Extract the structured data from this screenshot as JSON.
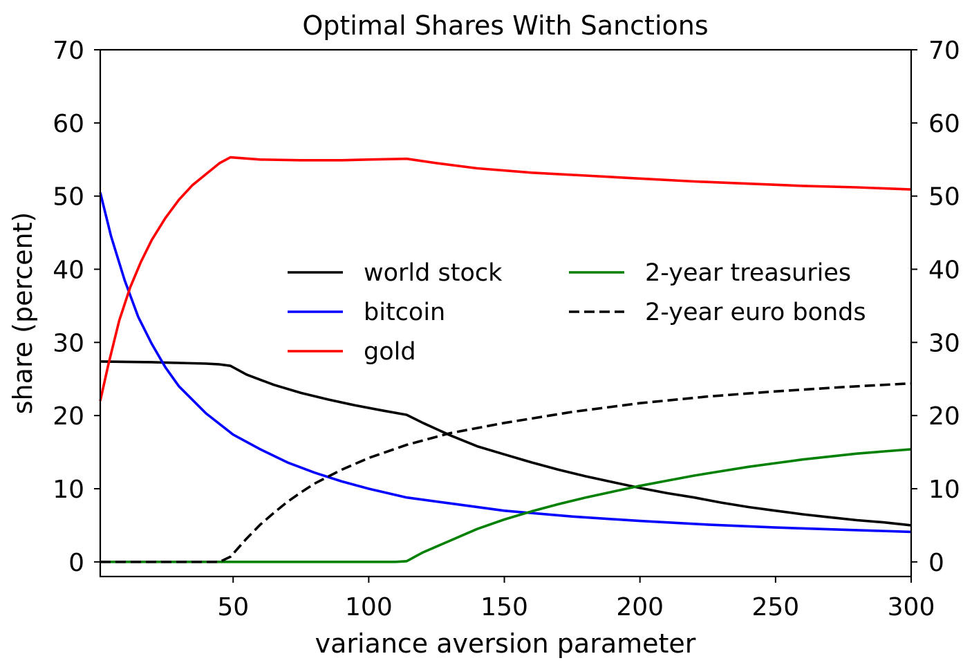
{
  "chart_data": {
    "type": "line",
    "title": "Optimal Shares With Sanctions",
    "xlabel": "variance aversion parameter",
    "ylabel": "share (percent)",
    "xlim": [
      1,
      300
    ],
    "ylim": [
      -2,
      70
    ],
    "xticks": [
      50,
      100,
      150,
      200,
      250,
      300
    ],
    "xtick_labels": [
      "50",
      "100",
      "150",
      "200",
      "250",
      "300"
    ],
    "yticks": [
      0,
      10,
      20,
      30,
      40,
      50,
      60,
      70
    ],
    "ytick_labels": [
      "0",
      "10",
      "20",
      "30",
      "40",
      "50",
      "60",
      "70"
    ],
    "right_axis_mirrored": true,
    "grid": false,
    "legend_position": "center",
    "legend_columns": 2,
    "series": [
      {
        "name": "world stock",
        "color": "#000000",
        "dash": "solid",
        "x": [
          1,
          10,
          20,
          30,
          40,
          45,
          49,
          55,
          65,
          75,
          85,
          95,
          105,
          114,
          120,
          130,
          140,
          150,
          160,
          170,
          180,
          190,
          200,
          210,
          220,
          230,
          240,
          250,
          260,
          270,
          280,
          290,
          300
        ],
        "y": [
          27.4,
          27.35,
          27.3,
          27.2,
          27.1,
          27.0,
          26.8,
          25.6,
          24.2,
          23.1,
          22.2,
          21.4,
          20.7,
          20.1,
          19.0,
          17.3,
          15.8,
          14.7,
          13.6,
          12.6,
          11.7,
          10.9,
          10.1,
          9.4,
          8.8,
          8.1,
          7.5,
          7.0,
          6.5,
          6.1,
          5.7,
          5.4,
          5.0
        ]
      },
      {
        "name": "bitcoin",
        "color": "#0000ff",
        "dash": "solid",
        "x": [
          1,
          5,
          10,
          15,
          20,
          25,
          30,
          40,
          50,
          60,
          70,
          80,
          90,
          100,
          114,
          130,
          150,
          175,
          200,
          225,
          250,
          275,
          300
        ],
        "y": [
          50.5,
          44.5,
          38.5,
          33.5,
          29.8,
          26.6,
          24.0,
          20.3,
          17.4,
          15.4,
          13.6,
          12.2,
          11.0,
          10.0,
          8.8,
          8.0,
          7.0,
          6.2,
          5.6,
          5.1,
          4.7,
          4.4,
          4.1
        ]
      },
      {
        "name": "gold",
        "color": "#ff0000",
        "dash": "solid",
        "x": [
          1,
          4,
          8,
          12,
          16,
          20,
          25,
          30,
          35,
          40,
          45,
          49,
          60,
          75,
          90,
          100,
          114,
          125,
          140,
          160,
          180,
          200,
          220,
          240,
          260,
          280,
          300
        ],
        "y": [
          22.0,
          27.0,
          33.0,
          37.5,
          41.0,
          44.0,
          47.0,
          49.5,
          51.5,
          53.0,
          54.5,
          55.3,
          55.0,
          54.9,
          54.9,
          55.0,
          55.1,
          54.5,
          53.8,
          53.2,
          52.8,
          52.4,
          52.0,
          51.7,
          51.4,
          51.2,
          50.9
        ]
      },
      {
        "name": "2-year treasuries",
        "color": "#008000",
        "dash": "solid",
        "x": [
          1,
          50,
          100,
          110,
          114,
          120,
          130,
          140,
          150,
          160,
          170,
          180,
          190,
          200,
          210,
          220,
          230,
          240,
          250,
          260,
          270,
          280,
          290,
          300
        ],
        "y": [
          0,
          0,
          0,
          0,
          0.1,
          1.3,
          2.9,
          4.5,
          5.8,
          6.9,
          7.9,
          8.8,
          9.6,
          10.4,
          11.1,
          11.8,
          12.4,
          13.0,
          13.5,
          14.0,
          14.4,
          14.8,
          15.1,
          15.4
        ]
      },
      {
        "name": "2-year euro bonds",
        "color": "#000000",
        "dash": "dashed",
        "x": [
          1,
          20,
          45,
          49,
          55,
          60,
          65,
          70,
          75,
          80,
          90,
          100,
          114,
          130,
          150,
          175,
          200,
          225,
          250,
          275,
          300
        ],
        "y": [
          0,
          0,
          0,
          0.7,
          3.2,
          5.1,
          6.7,
          8.2,
          9.5,
          10.7,
          12.6,
          14.2,
          16.0,
          17.6,
          19.0,
          20.5,
          21.7,
          22.6,
          23.3,
          23.9,
          24.4
        ]
      }
    ]
  }
}
